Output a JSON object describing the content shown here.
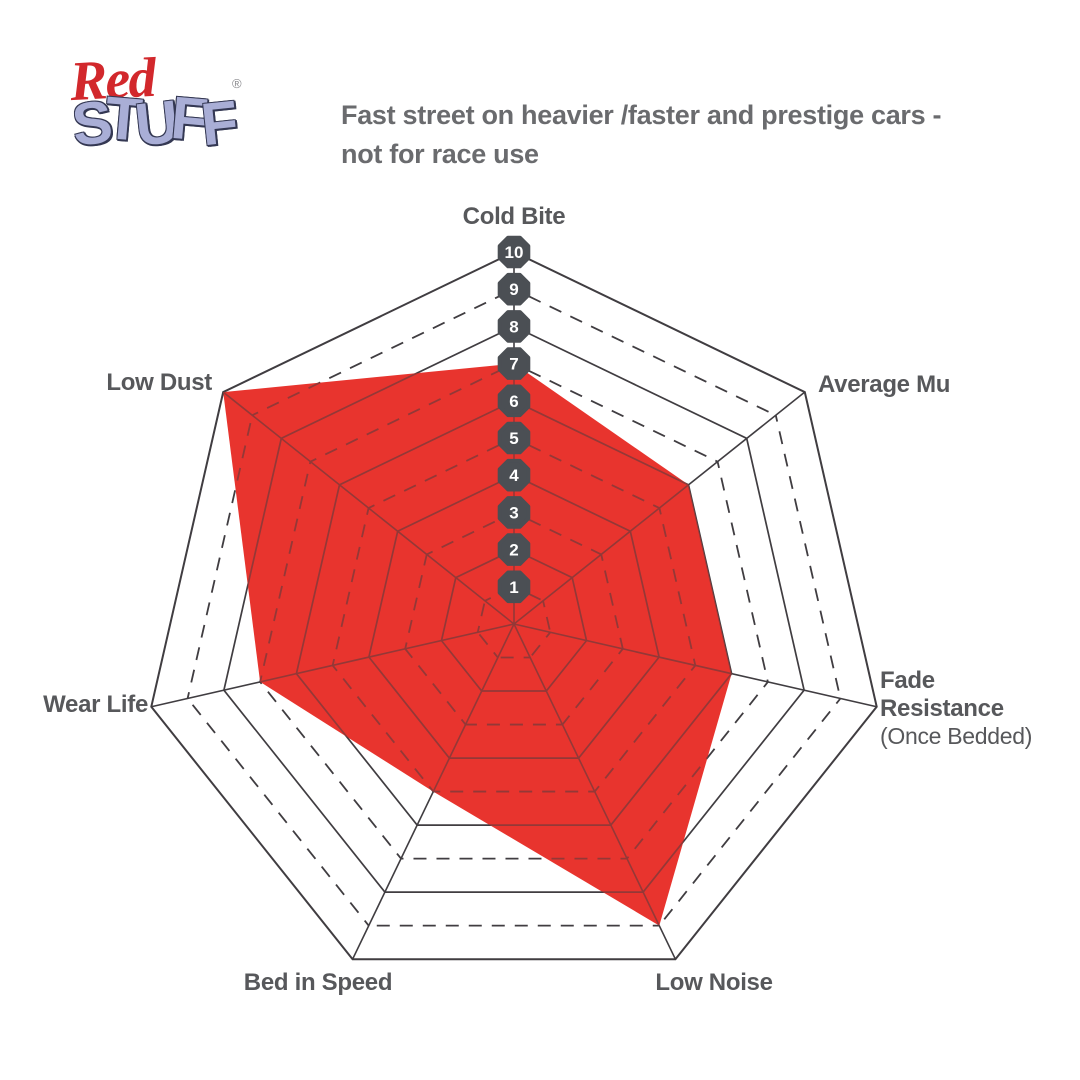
{
  "logo": {
    "word1": "Red",
    "word2": "STUFF",
    "trademark": "®"
  },
  "subtitle": {
    "line1": "Fast street on heavier /faster and prestige cars -",
    "line2": "not for race use"
  },
  "chart_data": {
    "type": "radar",
    "title": "Fast street on heavier /faster and prestige cars - not for race use",
    "categories": [
      "Cold Bite",
      "Average Mu",
      "Fade Resistance",
      "Low Noise",
      "Bed in Speed",
      "Wear Life",
      "Low Dust"
    ],
    "category_sublabels": {
      "Fade Resistance": "(Once Bedded)"
    },
    "series": [
      {
        "name": "RedStuff",
        "values": [
          7,
          6,
          6,
          9,
          5,
          7,
          10
        ],
        "color": "#e8342e"
      }
    ],
    "scale": {
      "min": 0,
      "max": 10,
      "badge_values": [
        1,
        2,
        3,
        4,
        5,
        6,
        7,
        8,
        9,
        10
      ],
      "solid_rings": [
        2,
        4,
        6,
        8,
        10
      ],
      "dashed_rings": [
        1,
        3,
        5,
        7,
        9
      ]
    },
    "legend_position": "none",
    "grid": true,
    "colors": {
      "grid": "#403d41",
      "label": "#57585b",
      "badge": "#4b4f54",
      "badge_text": "#ffffff"
    }
  }
}
